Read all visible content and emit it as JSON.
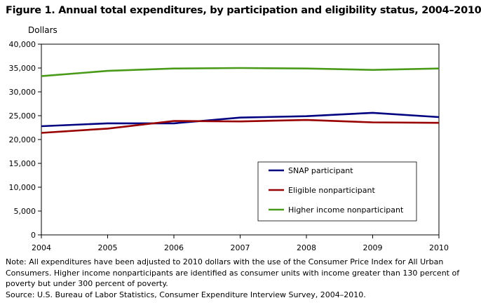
{
  "figure": {
    "title": "Figure 1. Annual total expenditures, by participation and eligibility status, 2004–2010",
    "note": "Note:  All expenditures have been adjusted to 2010 dollars with the use of the Consumer Price Index for All Urban Consumers. Higher income nonparticipants  are identified as consumer units with income greater than 130 percent of poverty but under 300 percent of poverty.",
    "source": "Source:  U.S. Bureau of Labor Statistics, Consumer Expenditure Interview Survey, 2004–2010."
  },
  "chart_data": {
    "type": "line",
    "title": "Figure 1. Annual total expenditures, by participation and eligibility status, 2004–2010",
    "ylabel": "Dollars",
    "xlabel": "",
    "x": [
      2004,
      2005,
      2006,
      2007,
      2008,
      2009,
      2010
    ],
    "ylim": [
      0,
      40000
    ],
    "yticks": [
      0,
      5000,
      10000,
      15000,
      20000,
      25000,
      30000,
      35000,
      40000
    ],
    "ytick_labels": [
      "0",
      "5,000",
      "10,000",
      "15,000",
      "20,000",
      "25,000",
      "30,000",
      "35,000",
      "40,000"
    ],
    "grid": false,
    "legend_position": "lower-right",
    "series": [
      {
        "name": "SNAP participant",
        "color": "#000080",
        "values": [
          22800,
          23400,
          23400,
          24600,
          24900,
          25600,
          24700
        ]
      },
      {
        "name": "Eligible nonparticipant",
        "color": "#990000",
        "values": [
          21400,
          22300,
          23900,
          23800,
          24100,
          23600,
          23500
        ]
      },
      {
        "name": "Higher income nonparticipant",
        "color": "#4a9a1a",
        "values": [
          33300,
          34400,
          34900,
          35000,
          34900,
          34600,
          34900
        ]
      }
    ]
  }
}
